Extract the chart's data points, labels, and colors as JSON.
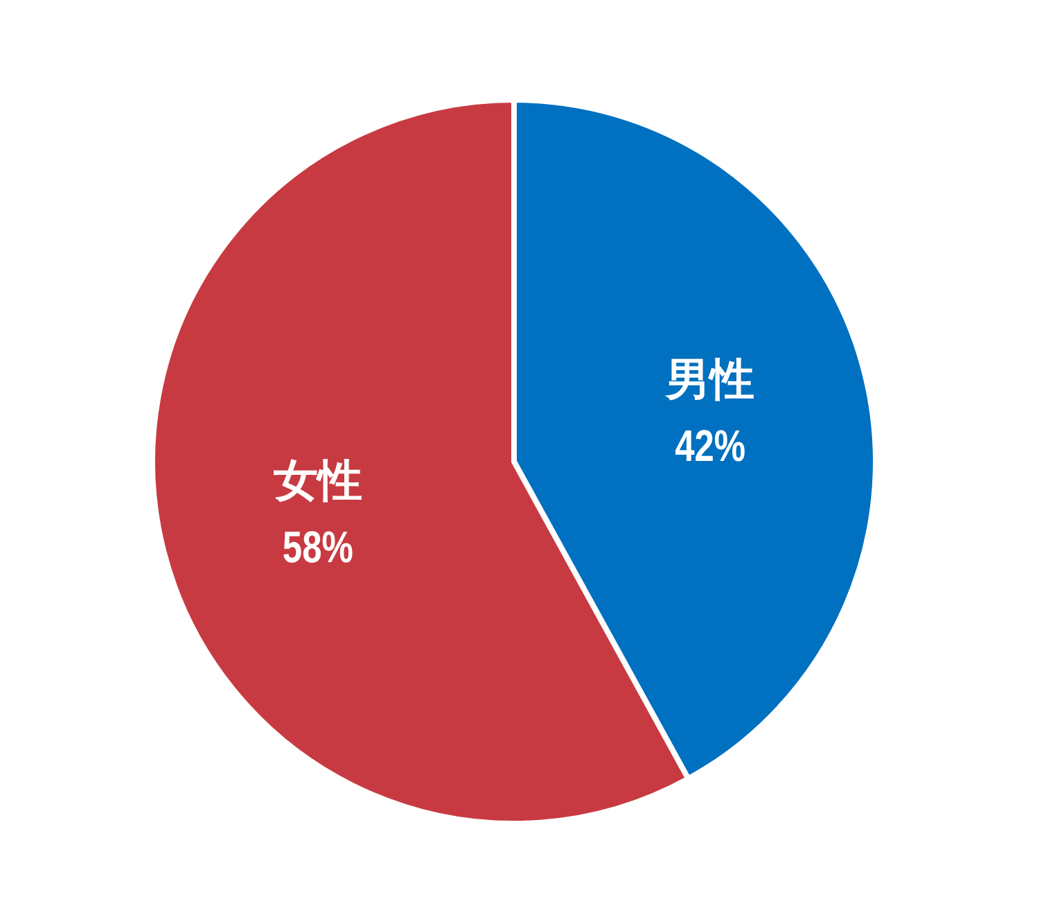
{
  "chart_data": {
    "type": "pie",
    "categories": [
      "男性",
      "女性"
    ],
    "values": [
      42,
      58
    ],
    "colors": [
      "#0070c0",
      "#c83a41"
    ],
    "value_labels": [
      "42%",
      "58%"
    ]
  }
}
